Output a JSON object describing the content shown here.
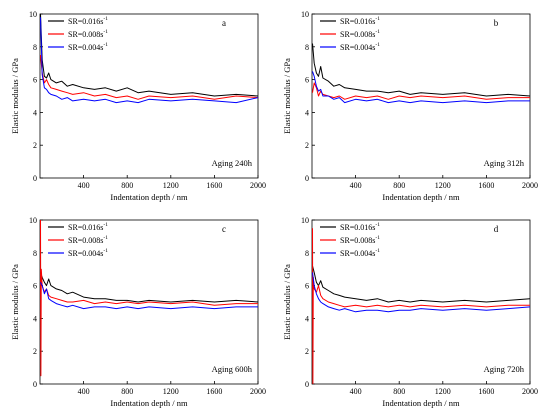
{
  "chart_data": [
    {
      "type": "line",
      "panel": "a",
      "annotation": "Aging 240h",
      "xlabel": "Indentation depth / nm",
      "ylabel": "Elastic modulus / GPa",
      "xlim": [
        0,
        2000
      ],
      "ylim": [
        0,
        10
      ],
      "x_ticks": [
        "400",
        "800",
        "1200",
        "1600",
        "2000"
      ],
      "y_ticks": [
        "0",
        "2",
        "4",
        "6",
        "8",
        "10"
      ],
      "grid": false,
      "legend_position": "top-left",
      "series": [
        {
          "name": "SR=0.016s",
          "superscript": "-1",
          "color": "#000000",
          "x": [
            5,
            20,
            40,
            60,
            80,
            100,
            150,
            200,
            250,
            300,
            400,
            500,
            600,
            700,
            800,
            900,
            1000,
            1200,
            1400,
            1600,
            1800,
            2000
          ],
          "y": [
            10,
            7.2,
            6.2,
            6.1,
            6.4,
            6.0,
            5.8,
            5.9,
            5.6,
            5.7,
            5.5,
            5.4,
            5.5,
            5.3,
            5.5,
            5.2,
            5.3,
            5.1,
            5.2,
            5.0,
            5.1,
            5.0
          ]
        },
        {
          "name": "SR=0.008s",
          "superscript": "-1",
          "color": "#ff0000",
          "x": [
            5,
            20,
            40,
            60,
            80,
            100,
            150,
            200,
            250,
            300,
            400,
            500,
            600,
            700,
            800,
            900,
            1000,
            1200,
            1400,
            1600,
            1800,
            2000
          ],
          "y": [
            7.5,
            6.4,
            5.8,
            6.0,
            5.7,
            5.5,
            5.4,
            5.3,
            5.2,
            5.1,
            5.2,
            5.0,
            5.1,
            4.9,
            5.0,
            4.8,
            5.0,
            4.9,
            5.0,
            4.8,
            5.0,
            4.9
          ]
        },
        {
          "name": "SR=0.004s",
          "superscript": "-1",
          "color": "#0000ff",
          "x": [
            5,
            20,
            40,
            60,
            80,
            100,
            150,
            200,
            250,
            300,
            400,
            500,
            600,
            700,
            800,
            900,
            1000,
            1200,
            1400,
            1600,
            1800,
            2000
          ],
          "y": [
            9.8,
            6.3,
            5.5,
            5.4,
            5.2,
            5.1,
            5.0,
            4.8,
            4.9,
            4.7,
            4.8,
            4.7,
            4.8,
            4.6,
            4.7,
            4.6,
            4.8,
            4.7,
            4.8,
            4.7,
            4.6,
            4.9
          ]
        }
      ]
    },
    {
      "type": "line",
      "panel": "b",
      "annotation": "Aging 312h",
      "xlabel": "Indentation depth / nm",
      "ylabel": "Elastic modulus / GPa",
      "xlim": [
        0,
        2000
      ],
      "ylim": [
        0,
        10
      ],
      "x_ticks": [
        "400",
        "800",
        "1200",
        "1600",
        "2000"
      ],
      "y_ticks": [
        "0",
        "2",
        "4",
        "6",
        "8",
        "10"
      ],
      "grid": false,
      "legend_position": "top-left",
      "series": [
        {
          "name": "SR=0.016s",
          "superscript": "-1",
          "color": "#000000",
          "x": [
            5,
            20,
            40,
            60,
            80,
            100,
            150,
            200,
            250,
            300,
            400,
            500,
            600,
            700,
            800,
            900,
            1000,
            1200,
            1400,
            1600,
            1800,
            2000
          ],
          "y": [
            8.2,
            7.0,
            6.4,
            6.2,
            6.8,
            6.1,
            5.9,
            5.6,
            5.7,
            5.5,
            5.4,
            5.3,
            5.3,
            5.2,
            5.3,
            5.1,
            5.2,
            5.1,
            5.2,
            5.0,
            5.1,
            5.0
          ]
        },
        {
          "name": "SR=0.008s",
          "superscript": "-1",
          "color": "#ff0000",
          "x": [
            5,
            20,
            40,
            60,
            80,
            100,
            150,
            200,
            250,
            300,
            400,
            500,
            600,
            700,
            800,
            900,
            1000,
            1200,
            1400,
            1600,
            1800,
            2000
          ],
          "y": [
            5.2,
            5.8,
            5.5,
            5.0,
            5.3,
            5.1,
            5.0,
            4.9,
            5.0,
            4.8,
            5.0,
            4.9,
            5.0,
            4.8,
            5.0,
            4.9,
            5.0,
            4.9,
            5.0,
            4.8,
            4.9,
            4.9
          ]
        },
        {
          "name": "SR=0.004s",
          "superscript": "-1",
          "color": "#0000ff",
          "x": [
            5,
            20,
            40,
            60,
            80,
            100,
            150,
            200,
            250,
            300,
            400,
            500,
            600,
            700,
            800,
            900,
            1000,
            1200,
            1400,
            1600,
            1800,
            2000
          ],
          "y": [
            6.5,
            6.2,
            5.6,
            5.3,
            5.4,
            5.0,
            5.0,
            4.8,
            4.9,
            4.6,
            4.8,
            4.7,
            4.8,
            4.6,
            4.7,
            4.6,
            4.7,
            4.6,
            4.7,
            4.6,
            4.7,
            4.7
          ]
        }
      ]
    },
    {
      "type": "line",
      "panel": "c",
      "annotation": "Aging 600h",
      "xlabel": "Indentation depth / nm",
      "ylabel": "Elastic modulus / GPa",
      "xlim": [
        0,
        2000
      ],
      "ylim": [
        0,
        10
      ],
      "x_ticks": [
        "400",
        "800",
        "1200",
        "1600",
        "2000"
      ],
      "y_ticks": [
        "0",
        "2",
        "4",
        "6",
        "8",
        "10"
      ],
      "grid": false,
      "legend_position": "top-left",
      "series": [
        {
          "name": "SR=0.016s",
          "superscript": "-1",
          "color": "#000000",
          "x": [
            5,
            20,
            40,
            60,
            80,
            100,
            150,
            200,
            250,
            300,
            400,
            500,
            600,
            700,
            800,
            900,
            1000,
            1200,
            1400,
            1600,
            1800,
            2000
          ],
          "y": [
            6.8,
            6.5,
            6.2,
            6.0,
            6.4,
            6.0,
            5.8,
            5.7,
            5.5,
            5.6,
            5.3,
            5.2,
            5.2,
            5.1,
            5.1,
            5.0,
            5.1,
            5.0,
            5.1,
            5.0,
            5.1,
            5.0
          ]
        },
        {
          "name": "SR=0.008s",
          "superscript": "-1",
          "color": "#ff0000",
          "x": [
            5,
            8,
            12,
            20,
            40,
            60,
            80,
            100,
            150,
            200,
            250,
            300,
            400,
            500,
            600,
            700,
            800,
            900,
            1000,
            1200,
            1400,
            1600,
            1800,
            2000
          ],
          "y": [
            10,
            0.5,
            7.0,
            6.0,
            5.6,
            5.8,
            5.4,
            5.3,
            5.2,
            5.1,
            5.0,
            5.0,
            5.1,
            4.9,
            5.0,
            4.9,
            5.0,
            4.9,
            5.0,
            4.9,
            5.0,
            4.8,
            4.9,
            4.9
          ]
        },
        {
          "name": "SR=0.004s",
          "superscript": "-1",
          "color": "#0000ff",
          "x": [
            5,
            20,
            40,
            60,
            80,
            100,
            150,
            200,
            250,
            300,
            400,
            500,
            600,
            700,
            800,
            900,
            1000,
            1200,
            1400,
            1600,
            1800,
            2000
          ],
          "y": [
            6.2,
            6.0,
            5.5,
            5.8,
            5.2,
            5.1,
            4.9,
            4.8,
            4.7,
            4.8,
            4.6,
            4.7,
            4.7,
            4.6,
            4.7,
            4.6,
            4.7,
            4.6,
            4.7,
            4.6,
            4.7,
            4.7
          ]
        }
      ]
    },
    {
      "type": "line",
      "panel": "d",
      "annotation": "Aging 720h",
      "xlabel": "Indentation depth / nm",
      "ylabel": "Elastic modulus / GPa",
      "xlim": [
        0,
        2000
      ],
      "ylim": [
        0,
        10
      ],
      "x_ticks": [
        "400",
        "800",
        "1200",
        "1600",
        "2000"
      ],
      "y_ticks": [
        "0",
        "2",
        "4",
        "6",
        "8",
        "10"
      ],
      "grid": false,
      "legend_position": "top-left",
      "series": [
        {
          "name": "SR=0.016s",
          "superscript": "-1",
          "color": "#000000",
          "x": [
            5,
            20,
            40,
            60,
            80,
            100,
            150,
            200,
            250,
            300,
            400,
            500,
            600,
            700,
            800,
            900,
            1000,
            1200,
            1400,
            1600,
            1800,
            2000
          ],
          "y": [
            7.2,
            6.8,
            6.2,
            6.0,
            6.3,
            5.9,
            5.7,
            5.5,
            5.4,
            5.3,
            5.2,
            5.1,
            5.2,
            5.0,
            5.1,
            5.0,
            5.1,
            5.0,
            5.1,
            5.0,
            5.1,
            5.2
          ]
        },
        {
          "name": "SR=0.008s",
          "superscript": "-1",
          "color": "#ff0000",
          "x": [
            5,
            8,
            12,
            20,
            40,
            60,
            80,
            100,
            150,
            200,
            250,
            300,
            400,
            500,
            600,
            700,
            800,
            900,
            1000,
            1200,
            1400,
            1600,
            1800,
            2000
          ],
          "y": [
            9.5,
            0,
            6.5,
            5.8,
            5.6,
            6.0,
            5.4,
            5.2,
            5.0,
            4.9,
            4.8,
            4.7,
            4.8,
            4.7,
            4.8,
            4.7,
            4.8,
            4.7,
            4.8,
            4.7,
            4.8,
            4.7,
            4.8,
            4.8
          ]
        },
        {
          "name": "SR=0.004s",
          "superscript": "-1",
          "color": "#0000ff",
          "x": [
            5,
            20,
            40,
            60,
            80,
            100,
            150,
            200,
            250,
            300,
            400,
            500,
            600,
            700,
            800,
            900,
            1000,
            1200,
            1400,
            1600,
            1800,
            2000
          ],
          "y": [
            6.8,
            6.0,
            5.5,
            5.2,
            5.0,
            4.9,
            4.7,
            4.6,
            4.5,
            4.6,
            4.4,
            4.5,
            4.5,
            4.4,
            4.5,
            4.5,
            4.6,
            4.5,
            4.6,
            4.5,
            4.6,
            4.7
          ]
        }
      ]
    }
  ]
}
